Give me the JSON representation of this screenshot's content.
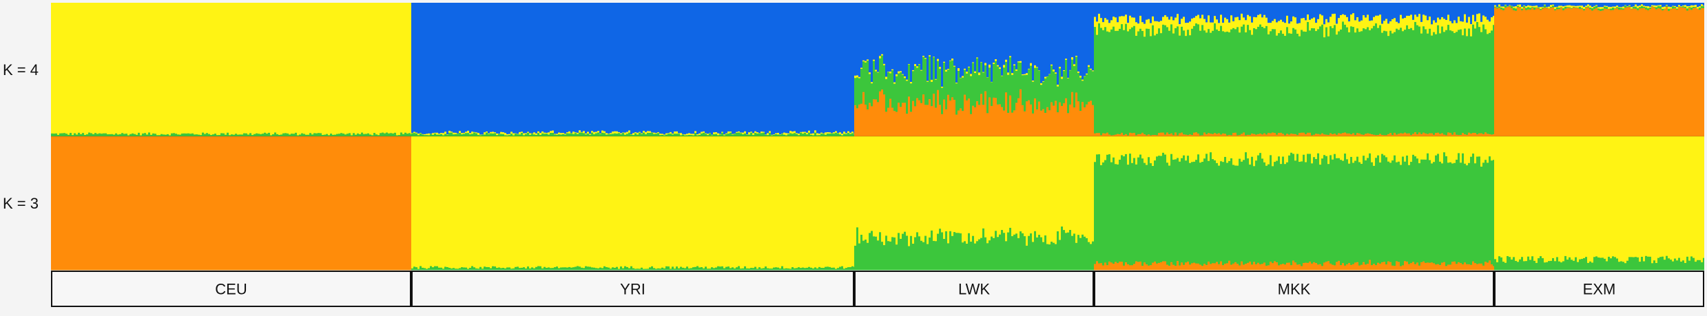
{
  "chart_data": {
    "type": "stacked-bar",
    "description_note": "",
    "rows": [
      {
        "label": "K = 4",
        "k": 4,
        "component_order_bottom_to_top": [
          "orange",
          "green",
          "yellow",
          "blue"
        ],
        "populations": [
          {
            "name": "CEU",
            "mean": {
              "orange": 0.0,
              "green": 0.02,
              "yellow": 0.98,
              "blue": 0.0
            }
          },
          {
            "name": "YRI",
            "mean": {
              "orange": 0.0,
              "green": 0.02,
              "yellow": 0.01,
              "blue": 0.97
            }
          },
          {
            "name": "LWK",
            "mean": {
              "orange": 0.25,
              "green": 0.24,
              "yellow": 0.01,
              "blue": 0.5
            }
          },
          {
            "name": "MKK",
            "mean": {
              "orange": 0.02,
              "green": 0.78,
              "yellow": 0.08,
              "blue": 0.12
            }
          },
          {
            "name": "EXM",
            "mean": {
              "orange": 0.96,
              "green": 0.01,
              "yellow": 0.01,
              "blue": 0.02
            }
          }
        ]
      },
      {
        "label": "K = 3",
        "k": 3,
        "component_order_bottom_to_top": [
          "orange",
          "green",
          "yellow"
        ],
        "populations": [
          {
            "name": "CEU",
            "mean": {
              "orange": 1.0,
              "green": 0.0,
              "yellow": 0.0
            }
          },
          {
            "name": "YRI",
            "mean": {
              "orange": 0.0,
              "green": 0.02,
              "yellow": 0.98
            }
          },
          {
            "name": "LWK",
            "mean": {
              "orange": 0.0,
              "green": 0.25,
              "yellow": 0.75
            }
          },
          {
            "name": "MKK",
            "mean": {
              "orange": 0.05,
              "green": 0.78,
              "yellow": 0.17
            }
          },
          {
            "name": "EXM",
            "mean": {
              "orange": 0.0,
              "green": 0.08,
              "yellow": 0.92
            }
          }
        ]
      }
    ],
    "populations": [
      {
        "name": "CEU",
        "fraction_of_samples": 0.218
      },
      {
        "name": "YRI",
        "fraction_of_samples": 0.268
      },
      {
        "name": "LWK",
        "fraction_of_samples": 0.145
      },
      {
        "name": "MKK",
        "fraction_of_samples": 0.242
      },
      {
        "name": "EXM",
        "fraction_of_samples": 0.127
      }
    ],
    "colors": {
      "orange": "#ff8c0a",
      "green": "#3cc63c",
      "yellow": "#fff314",
      "blue": "#0f66e6"
    },
    "ylim": [
      0,
      1
    ],
    "grid": false,
    "legend": "none"
  }
}
